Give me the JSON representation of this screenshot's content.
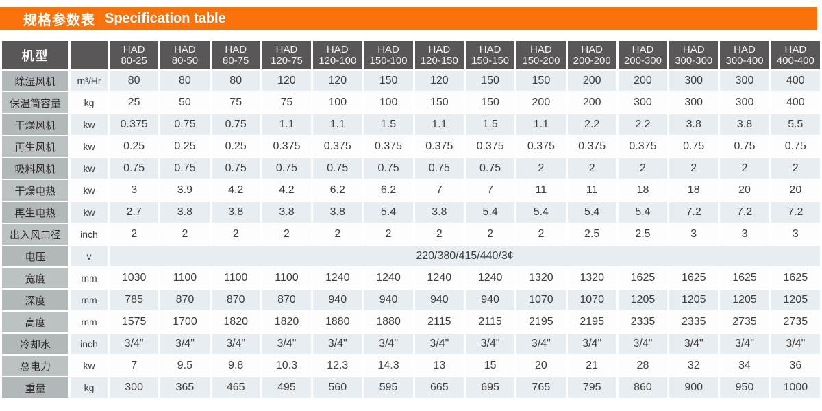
{
  "title": {
    "zh": "规格参数表",
    "en": "Specification table"
  },
  "colors": {
    "accent_orange": "#f9720b",
    "header_gray": "#595757",
    "label_gray": "#b2b8ba",
    "stripe_blue": "#e7edf0",
    "stripe_white": "#fdfdfd"
  },
  "table": {
    "corner_label": "机型",
    "model_prefix": "HAD",
    "models": [
      "80-25",
      "80-50",
      "80-75",
      "120-75",
      "120-100",
      "150-100",
      "120-150",
      "150-150",
      "150-200",
      "200-200",
      "200-300",
      "300-300",
      "300-400",
      "400-400"
    ],
    "rows": [
      {
        "label": "除湿风机",
        "unit": "m³/Hr",
        "values": [
          "80",
          "80",
          "80",
          "120",
          "120",
          "150",
          "120",
          "150",
          "150",
          "200",
          "200",
          "300",
          "300",
          "400"
        ]
      },
      {
        "label": "保温筒容量",
        "unit": "kg",
        "values": [
          "25",
          "50",
          "75",
          "75",
          "100",
          "100",
          "150",
          "150",
          "200",
          "200",
          "300",
          "300",
          "300",
          "400"
        ]
      },
      {
        "label": "干燥风机",
        "unit": "kw",
        "values": [
          "0.375",
          "0.75",
          "0.75",
          "1.1",
          "1.1",
          "1.5",
          "1.1",
          "1.5",
          "1.1",
          "2.2",
          "2.2",
          "3.8",
          "3.8",
          "5.5"
        ]
      },
      {
        "label": "再生风机",
        "unit": "kw",
        "values": [
          "0.25",
          "0.25",
          "0.25",
          "0.375",
          "0.375",
          "0.375",
          "0.375",
          "0.375",
          "0.375",
          "0.375",
          "0.375",
          "0.75",
          "0.75",
          "0.75"
        ]
      },
      {
        "label": "吸料风机",
        "unit": "kw",
        "values": [
          "0.75",
          "0.75",
          "0.75",
          "0.75",
          "0.75",
          "0.75",
          "0.75",
          "0.75",
          "2",
          "2",
          "2",
          "2",
          "2",
          "2"
        ]
      },
      {
        "label": "干燥电热",
        "unit": "kw",
        "values": [
          "3",
          "3.9",
          "4.2",
          "4.2",
          "6.2",
          "6.2",
          "7",
          "7",
          "11",
          "11",
          "18",
          "18",
          "20",
          "20"
        ]
      },
      {
        "label": "再生电热",
        "unit": "kw",
        "values": [
          "2.7",
          "3.8",
          "3.8",
          "3.8",
          "3.8",
          "5.4",
          "3.8",
          "5.4",
          "5.4",
          "5.4",
          "5.4",
          "7.2",
          "7.2",
          "7.2"
        ]
      },
      {
        "label": "出入风口径",
        "unit": "inch",
        "values": [
          "2",
          "2",
          "2",
          "2",
          "2",
          "2",
          "2",
          "2",
          "2",
          "2.5",
          "2.5",
          "3",
          "3",
          "3"
        ]
      },
      {
        "label": "电压",
        "unit": "v",
        "merged_value": "220/380/415/440/3¢"
      },
      {
        "label": "宽度",
        "unit": "mm",
        "values": [
          "1030",
          "1100",
          "1100",
          "1100",
          "1240",
          "1240",
          "1240",
          "1240",
          "1320",
          "1320",
          "1625",
          "1625",
          "1625",
          "1625"
        ]
      },
      {
        "label": "深度",
        "unit": "mm",
        "values": [
          "785",
          "870",
          "870",
          "870",
          "940",
          "940",
          "940",
          "940",
          "1070",
          "1070",
          "1205",
          "1205",
          "1205",
          "1205"
        ]
      },
      {
        "label": "高度",
        "unit": "mm",
        "values": [
          "1575",
          "1700",
          "1820",
          "1820",
          "1880",
          "1880",
          "2115",
          "2115",
          "2195",
          "2195",
          "2335",
          "2335",
          "2735",
          "2735"
        ]
      },
      {
        "label": "冷却水",
        "unit": "inch",
        "values": [
          "3/4\"",
          "3/4\"",
          "3/4\"",
          "3/4\"",
          "3/4\"",
          "3/4\"",
          "3/4\"",
          "3/4\"",
          "3/4\"",
          "3/4\"",
          "3/4\"",
          "3/4\"",
          "3/4\"",
          "3/4\""
        ]
      },
      {
        "label": "总电力",
        "unit": "kw",
        "values": [
          "7",
          "9.5",
          "9.8",
          "10.3",
          "12.3",
          "14.3",
          "13",
          "15",
          "20",
          "21",
          "28",
          "32",
          "34",
          "36"
        ]
      },
      {
        "label": "重量",
        "unit": "kg",
        "values": [
          "300",
          "365",
          "465",
          "495",
          "560",
          "595",
          "665",
          "695",
          "765",
          "795",
          "860",
          "900",
          "950",
          "1000"
        ]
      }
    ]
  }
}
